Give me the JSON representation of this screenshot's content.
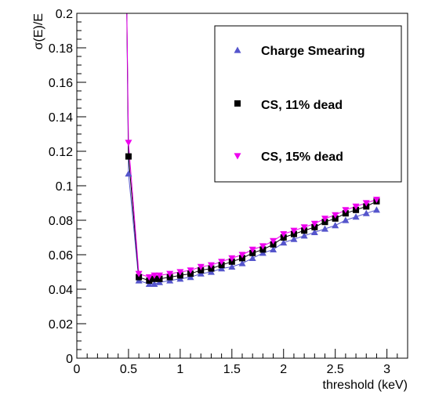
{
  "chart_data": {
    "type": "scatter",
    "xlabel": "threshold (keV)",
    "ylabel": "σ(E)/E",
    "xlim": [
      0,
      3.2
    ],
    "ylim": [
      0,
      0.2
    ],
    "xticks": [
      "0",
      "0.5",
      "1",
      "1.5",
      "2",
      "2.5",
      "3"
    ],
    "yticks": [
      "0",
      "0.02",
      "0.04",
      "0.06",
      "0.08",
      "0.1",
      "0.12",
      "0.14",
      "0.16",
      "0.18",
      "0.2"
    ],
    "xtick_values": [
      0,
      0.5,
      1,
      1.5,
      2,
      2.5,
      3
    ],
    "ytick_values": [
      0,
      0.02,
      0.04,
      0.06,
      0.08,
      0.1,
      0.12,
      0.14,
      0.16,
      0.18,
      0.2
    ],
    "x": [
      0.5,
      0.6,
      0.7,
      0.75,
      0.8,
      0.9,
      1.0,
      1.1,
      1.2,
      1.3,
      1.4,
      1.5,
      1.6,
      1.7,
      1.8,
      1.9,
      2.0,
      2.1,
      2.2,
      2.3,
      2.4,
      2.5,
      2.6,
      2.7,
      2.8,
      2.9
    ],
    "series": [
      {
        "name": "Charge Smearing",
        "marker": "triangle-up",
        "color": "#5555cc",
        "values": [
          0.107,
          0.045,
          0.043,
          0.043,
          0.044,
          0.045,
          0.046,
          0.047,
          0.049,
          0.05,
          0.052,
          0.053,
          0.055,
          0.058,
          0.061,
          0.063,
          0.067,
          0.069,
          0.071,
          0.073,
          0.075,
          0.077,
          0.08,
          0.082,
          0.084,
          0.086
        ]
      },
      {
        "name": "CS, 11% dead",
        "marker": "square",
        "color": "#000000",
        "values": [
          0.117,
          0.047,
          0.045,
          0.046,
          0.046,
          0.047,
          0.048,
          0.049,
          0.051,
          0.052,
          0.054,
          0.056,
          0.058,
          0.061,
          0.063,
          0.066,
          0.07,
          0.072,
          0.074,
          0.076,
          0.079,
          0.081,
          0.084,
          0.086,
          0.088,
          0.091
        ]
      },
      {
        "name": "CS, 15% dead",
        "marker": "triangle-down",
        "color": "#ee00ee",
        "values": [
          0.125,
          0.049,
          0.047,
          0.048,
          0.048,
          0.049,
          0.05,
          0.051,
          0.053,
          0.054,
          0.056,
          0.058,
          0.06,
          0.063,
          0.065,
          0.068,
          0.072,
          0.074,
          0.076,
          0.078,
          0.081,
          0.083,
          0.086,
          0.088,
          0.09,
          0.092
        ]
      }
    ],
    "legend": "top-right",
    "grid": false
  }
}
